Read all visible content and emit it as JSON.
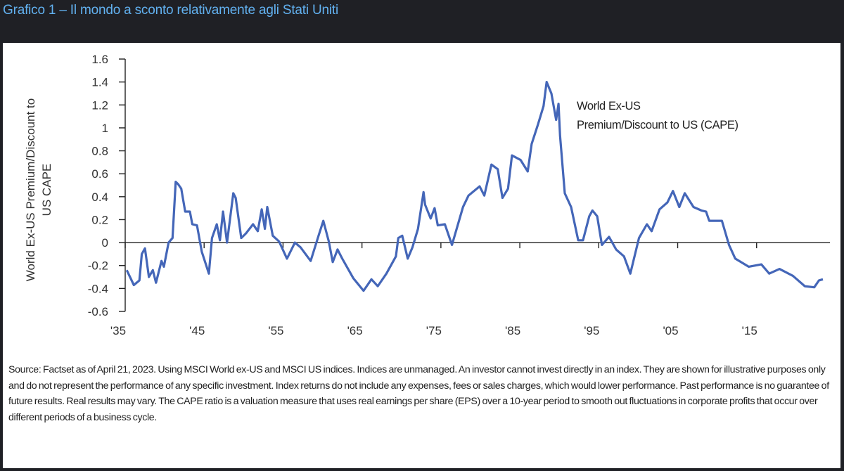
{
  "header": {
    "title": "Grafico 1 – Il mondo a sconto relativamente agli Stati Uniti"
  },
  "chart_data": {
    "type": "line",
    "title": "Grafico 1 – Il mondo a sconto relativamente agli Stati Uniti",
    "xlabel": "",
    "ylabel_lines": [
      "World Ex-US Premium/Discount to",
      "US CAPE"
    ],
    "ylim": [
      -0.6,
      1.6
    ],
    "xlim": [
      1935,
      2023.4
    ],
    "grid": false,
    "y_ticks": [
      1.6,
      1.4,
      1.2,
      1,
      0.8,
      0.6,
      0.4,
      0.2,
      0,
      -0.2,
      -0.4,
      -0.6
    ],
    "y_tick_labels": [
      "1.6",
      "1.4",
      "1.2",
      "1",
      "0.8",
      "0.6",
      "0.4",
      "0.2",
      "0",
      "-0.2",
      "-0.4",
      "-0.6"
    ],
    "x_ticks": [
      1935,
      1945,
      1955,
      1965,
      1975,
      1985,
      1995,
      2005,
      2015
    ],
    "x_tick_labels": [
      "'35",
      "'45",
      "'55",
      "'65",
      "'75",
      "'85",
      "'95",
      "'05",
      "'15"
    ],
    "annotation_lines": [
      "World Ex-US",
      "Premium/Discount to US (CAPE)"
    ],
    "series": [
      {
        "name": "World Ex-US Premium/Discount to US (CAPE)",
        "color": "#4466b8",
        "points": [
          [
            1935.2,
            -0.24
          ],
          [
            1936.1,
            -0.37
          ],
          [
            1936.8,
            -0.33
          ],
          [
            1937.1,
            -0.1
          ],
          [
            1937.5,
            -0.05
          ],
          [
            1938,
            -0.3
          ],
          [
            1938.5,
            -0.24
          ],
          [
            1938.9,
            -0.35
          ],
          [
            1939.6,
            -0.16
          ],
          [
            1939.9,
            -0.21
          ],
          [
            1940.5,
            0.0
          ],
          [
            1941,
            0.04
          ],
          [
            1941.4,
            0.53
          ],
          [
            1941.7,
            0.51
          ],
          [
            1942.1,
            0.47
          ],
          [
            1942.6,
            0.27
          ],
          [
            1943.2,
            0.27
          ],
          [
            1943.5,
            0.16
          ],
          [
            1944.1,
            0.15
          ],
          [
            1944.7,
            -0.08
          ],
          [
            1945.6,
            -0.27
          ],
          [
            1946,
            0.04
          ],
          [
            1946.6,
            0.16
          ],
          [
            1947,
            0.02
          ],
          [
            1947.4,
            0.27
          ],
          [
            1947.9,
            0.0
          ],
          [
            1948.7,
            0.43
          ],
          [
            1949,
            0.39
          ],
          [
            1949.7,
            0.04
          ],
          [
            1950.3,
            0.08
          ],
          [
            1951.2,
            0.16
          ],
          [
            1951.8,
            0.1
          ],
          [
            1952.3,
            0.29
          ],
          [
            1952.7,
            0.12
          ],
          [
            1953,
            0.31
          ],
          [
            1953.7,
            0.06
          ],
          [
            1954.5,
            0.01
          ],
          [
            1955.5,
            -0.14
          ],
          [
            1956.5,
            0.0
          ],
          [
            1957.2,
            -0.04
          ],
          [
            1958.5,
            -0.16
          ],
          [
            1959.5,
            0.06
          ],
          [
            1960.1,
            0.19
          ],
          [
            1960.8,
            0.01
          ],
          [
            1961.3,
            -0.17
          ],
          [
            1961.9,
            -0.06
          ],
          [
            1962.5,
            -0.14
          ],
          [
            1963.9,
            -0.31
          ],
          [
            1965.2,
            -0.42
          ],
          [
            1966.2,
            -0.32
          ],
          [
            1967,
            -0.38
          ],
          [
            1968.1,
            -0.27
          ],
          [
            1969.3,
            -0.12
          ],
          [
            1969.6,
            0.04
          ],
          [
            1970.1,
            0.06
          ],
          [
            1970.8,
            -0.14
          ],
          [
            1971.4,
            -0.04
          ],
          [
            1972.1,
            0.12
          ],
          [
            1972.8,
            0.44
          ],
          [
            1973,
            0.33
          ],
          [
            1973.7,
            0.21
          ],
          [
            1974.2,
            0.3
          ],
          [
            1974.6,
            0.15
          ],
          [
            1975.5,
            0.16
          ],
          [
            1976.4,
            -0.02
          ],
          [
            1977.8,
            0.31
          ],
          [
            1978.5,
            0.41
          ],
          [
            1979.9,
            0.49
          ],
          [
            1980.5,
            0.41
          ],
          [
            1981.4,
            0.68
          ],
          [
            1982.2,
            0.64
          ],
          [
            1982.8,
            0.39
          ],
          [
            1983.5,
            0.47
          ],
          [
            1984,
            0.76
          ],
          [
            1985.1,
            0.72
          ],
          [
            1986,
            0.62
          ],
          [
            1986.5,
            0.86
          ],
          [
            1987.3,
            1.03
          ],
          [
            1988,
            1.19
          ],
          [
            1988.4,
            1.4
          ],
          [
            1989,
            1.3
          ],
          [
            1989.6,
            1.07
          ],
          [
            1989.9,
            1.21
          ],
          [
            1990.1,
            0.93
          ],
          [
            1990.7,
            0.43
          ],
          [
            1991.5,
            0.31
          ],
          [
            1992.4,
            0.02
          ],
          [
            1993,
            0.02
          ],
          [
            1993.8,
            0.23
          ],
          [
            1994.2,
            0.28
          ],
          [
            1994.8,
            0.23
          ],
          [
            1995.4,
            -0.02
          ],
          [
            1996.3,
            0.05
          ],
          [
            1997.2,
            -0.06
          ],
          [
            1998.2,
            -0.12
          ],
          [
            1999,
            -0.27
          ],
          [
            2000.1,
            0.04
          ],
          [
            2001.1,
            0.16
          ],
          [
            2001.7,
            0.1
          ],
          [
            2002.7,
            0.29
          ],
          [
            2003.7,
            0.35
          ],
          [
            2004.4,
            0.45
          ],
          [
            2005.2,
            0.31
          ],
          [
            2005.9,
            0.43
          ],
          [
            2007,
            0.31
          ],
          [
            2008,
            0.28
          ],
          [
            2008.6,
            0.27
          ],
          [
            2009,
            0.19
          ],
          [
            2010.6,
            0.19
          ],
          [
            2011.5,
            -0.02
          ],
          [
            2012.3,
            -0.14
          ],
          [
            2014,
            -0.21
          ],
          [
            2015.6,
            -0.19
          ],
          [
            2016.6,
            -0.27
          ],
          [
            2017.9,
            -0.23
          ],
          [
            2019.6,
            -0.29
          ],
          [
            2021.1,
            -0.38
          ],
          [
            2022.3,
            -0.39
          ],
          [
            2022.9,
            -0.33
          ],
          [
            2023.4,
            -0.32
          ]
        ]
      }
    ]
  },
  "footnote": "Source: Factset as of April 21, 2023. Using MSCI World ex-US and MSCI US indices. Indices are unmanaged. An investor cannot invest directly in an index. They are shown for illustrative purposes only and do not represent the performance of any specific investment. Index returns do not include any expenses, fees or sales charges, which would lower performance. Past performance is no guarantee of future results. Real results may vary. The CAPE ratio is a valuation measure that uses real earnings per share (EPS) over a 10-year period to smooth out fluctuations in corporate profits that occur over different periods of a business cycle."
}
